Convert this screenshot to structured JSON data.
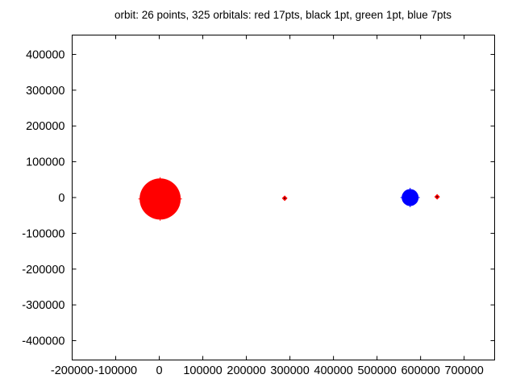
{
  "title": "orbit: 26 points, 325 orbitals: red 17pts, black 1pt, green 1pt, blue 7pts",
  "colors": {
    "background": "#ffffff",
    "axis": "#000000",
    "red": "#ff0000",
    "blue": "#0000ff",
    "diamond_center": "#550000"
  },
  "chart_data": {
    "type": "scatter",
    "title": "orbit: 26 points, 325 orbitals: red 17pts, black 1pt, green 1pt, blue 7pts",
    "xlabel": "",
    "ylabel": "",
    "xlim": [
      -200000,
      770000
    ],
    "ylim": [
      -454000,
      454000
    ],
    "x_ticks": [
      -200000,
      -100000,
      0,
      100000,
      200000,
      300000,
      400000,
      500000,
      600000,
      700000
    ],
    "y_ticks": [
      -400000,
      -300000,
      -200000,
      -100000,
      0,
      100000,
      200000,
      300000,
      400000
    ],
    "grid": false,
    "legend_position": "none",
    "point_counts": {
      "total_points": 26,
      "orbitals": 325,
      "red": 17,
      "black": 1,
      "green": 1,
      "blue": 7
    },
    "markers": [
      {
        "name": "red-cluster",
        "shape": "circle",
        "color": "#ff0000",
        "x": 2000,
        "y": -4000,
        "radius_px": 25.5,
        "points": 17
      },
      {
        "name": "small-marker-1",
        "shape": "diamond",
        "color": "#ff0000",
        "center_color": "#550000",
        "x": 288000,
        "y": -2000,
        "radius_px": 3.5,
        "points": 1
      },
      {
        "name": "blue-cluster",
        "shape": "circle",
        "color": "#0000ff",
        "x": 576000,
        "y": 0,
        "radius_px": 10.5,
        "points": 7
      },
      {
        "name": "small-marker-2",
        "shape": "diamond",
        "color": "#ff0000",
        "center_color": "#550000",
        "x": 638000,
        "y": 2000,
        "radius_px": 3.5,
        "points": 1
      }
    ]
  }
}
